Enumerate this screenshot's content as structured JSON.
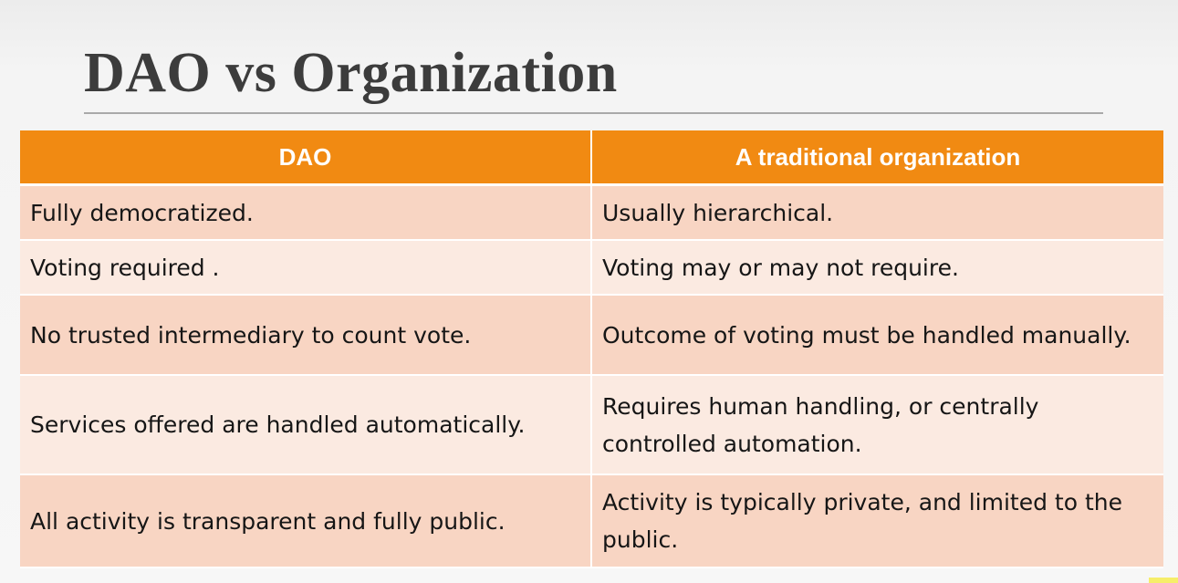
{
  "slide": {
    "title": "DAO vs Organization"
  },
  "table": {
    "headers": [
      "DAO",
      "A traditional organization"
    ],
    "rows": [
      [
        "Fully democratized.",
        "Usually hierarchical."
      ],
      [
        "Voting required .",
        "Voting may or may not require."
      ],
      [
        "No trusted intermediary to count vote.",
        "Outcome of voting must be handled manually."
      ],
      [
        "Services offered are handled automatically.",
        "Requires human handling, or centrally controlled automation."
      ],
      [
        "All activity is transparent and fully public.",
        "Activity is typically private, and limited to the public."
      ]
    ]
  },
  "colors": {
    "header_bg": "#f18a12",
    "row_odd_bg": "#f8d5c3",
    "row_even_bg": "#fbeae1",
    "title_text": "#3c3c3c"
  }
}
